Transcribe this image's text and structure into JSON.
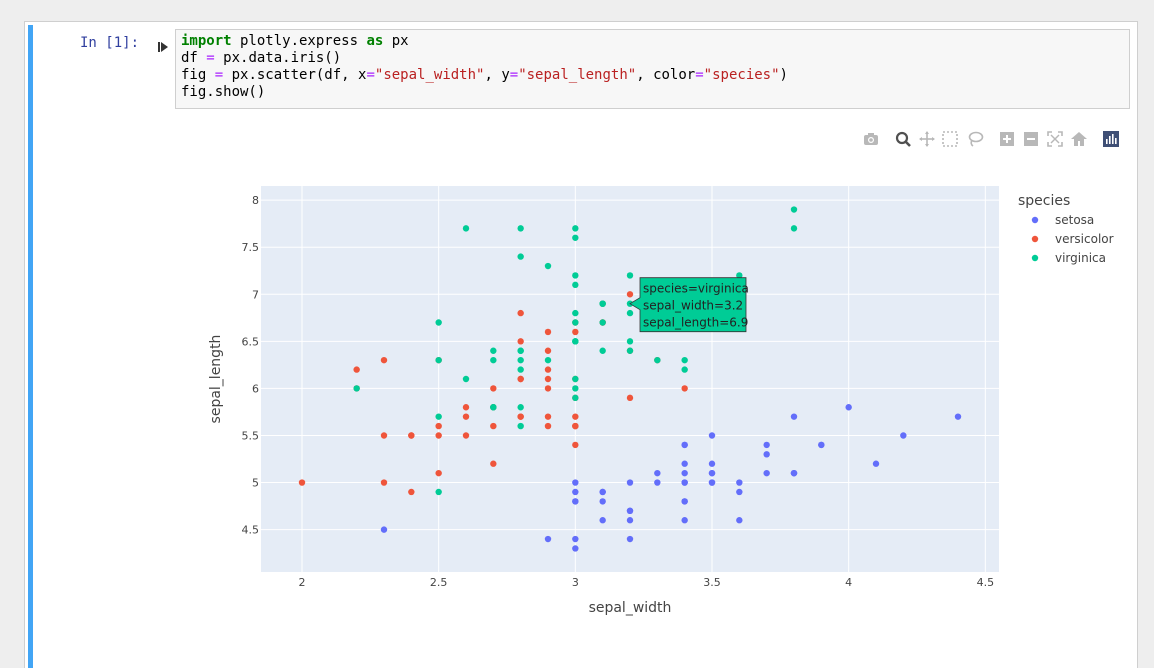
{
  "cell": {
    "prompt": "In [1]:",
    "code_lines": [
      [
        {
          "t": "import",
          "c": "kw"
        },
        {
          "t": " plotly.express ",
          "c": ""
        },
        {
          "t": "as",
          "c": "kw"
        },
        {
          "t": " px",
          "c": ""
        }
      ],
      [
        {
          "t": "df ",
          "c": ""
        },
        {
          "t": "=",
          "c": "op"
        },
        {
          "t": " px.data.iris()",
          "c": ""
        }
      ],
      [
        {
          "t": "fig ",
          "c": ""
        },
        {
          "t": "=",
          "c": "op"
        },
        {
          "t": " px.scatter(df, x",
          "c": ""
        },
        {
          "t": "=",
          "c": "op"
        },
        {
          "t": "\"sepal_width\"",
          "c": "str"
        },
        {
          "t": ", y",
          "c": ""
        },
        {
          "t": "=",
          "c": "op"
        },
        {
          "t": "\"sepal_length\"",
          "c": "str"
        },
        {
          "t": ", color",
          "c": ""
        },
        {
          "t": "=",
          "c": "op"
        },
        {
          "t": "\"species\"",
          "c": "str"
        },
        {
          "t": ")",
          "c": ""
        }
      ],
      [
        {
          "t": "fig.show()",
          "c": ""
        }
      ]
    ]
  },
  "modebar": {
    "buttons": [
      "camera-icon",
      "zoom-icon",
      "pan-icon",
      "box-select-icon",
      "lasso-icon",
      "zoom-in-icon",
      "zoom-out-icon",
      "autoscale-icon",
      "reset-axes-icon",
      "plotly-logo-icon"
    ]
  },
  "chart_data": {
    "type": "scatter",
    "xlabel": "sepal_width",
    "ylabel": "sepal_length",
    "xlim": [
      1.85,
      4.55
    ],
    "ylim": [
      4.05,
      8.15
    ],
    "xticks": [
      "2",
      "2.5",
      "3",
      "3.5",
      "4",
      "4.5"
    ],
    "yticks": [
      "4.5",
      "5",
      "5.5",
      "6",
      "6.5",
      "7",
      "7.5",
      "8"
    ],
    "grid": true,
    "legend_title": "species",
    "legend_position": "top-right",
    "series": [
      {
        "name": "setosa",
        "color": "#636efa",
        "points": [
          [
            3.5,
            5.1
          ],
          [
            3.0,
            4.9
          ],
          [
            3.2,
            4.7
          ],
          [
            3.1,
            4.6
          ],
          [
            3.6,
            5.0
          ],
          [
            3.9,
            5.4
          ],
          [
            3.4,
            4.6
          ],
          [
            3.4,
            5.0
          ],
          [
            2.9,
            4.4
          ],
          [
            3.1,
            4.9
          ],
          [
            3.7,
            5.4
          ],
          [
            3.4,
            4.8
          ],
          [
            3.0,
            4.8
          ],
          [
            3.0,
            4.3
          ],
          [
            4.0,
            5.8
          ],
          [
            4.4,
            5.7
          ],
          [
            3.9,
            5.4
          ],
          [
            3.5,
            5.1
          ],
          [
            3.8,
            5.7
          ],
          [
            3.8,
            5.1
          ],
          [
            3.4,
            5.4
          ],
          [
            3.7,
            5.1
          ],
          [
            3.6,
            4.6
          ],
          [
            3.3,
            5.1
          ],
          [
            3.4,
            4.8
          ],
          [
            3.0,
            5.0
          ],
          [
            3.4,
            5.0
          ],
          [
            3.5,
            5.2
          ],
          [
            3.4,
            5.2
          ],
          [
            3.2,
            4.7
          ],
          [
            3.1,
            4.8
          ],
          [
            3.4,
            5.4
          ],
          [
            4.1,
            5.2
          ],
          [
            4.2,
            5.5
          ],
          [
            3.1,
            4.9
          ],
          [
            3.2,
            5.0
          ],
          [
            3.5,
            5.5
          ],
          [
            3.6,
            4.9
          ],
          [
            3.0,
            4.4
          ],
          [
            3.4,
            5.1
          ],
          [
            3.5,
            5.0
          ],
          [
            2.3,
            4.5
          ],
          [
            3.2,
            4.4
          ],
          [
            3.5,
            5.0
          ],
          [
            3.8,
            5.1
          ],
          [
            3.0,
            4.8
          ],
          [
            3.8,
            5.1
          ],
          [
            3.2,
            4.6
          ],
          [
            3.7,
            5.3
          ],
          [
            3.3,
            5.0
          ]
        ]
      },
      {
        "name": "versicolor",
        "color": "#ef553b",
        "points": [
          [
            3.2,
            7.0
          ],
          [
            3.2,
            6.4
          ],
          [
            3.1,
            6.9
          ],
          [
            2.3,
            5.5
          ],
          [
            2.8,
            6.5
          ],
          [
            2.8,
            5.7
          ],
          [
            3.3,
            6.3
          ],
          [
            2.4,
            4.9
          ],
          [
            2.9,
            6.6
          ],
          [
            2.7,
            5.2
          ],
          [
            2.0,
            5.0
          ],
          [
            3.0,
            5.9
          ],
          [
            2.2,
            6.0
          ],
          [
            2.9,
            6.1
          ],
          [
            2.9,
            5.6
          ],
          [
            3.1,
            6.7
          ],
          [
            3.0,
            5.6
          ],
          [
            2.7,
            5.8
          ],
          [
            2.2,
            6.2
          ],
          [
            2.5,
            5.6
          ],
          [
            3.2,
            5.9
          ],
          [
            2.8,
            6.1
          ],
          [
            2.5,
            6.3
          ],
          [
            2.8,
            6.1
          ],
          [
            2.9,
            6.4
          ],
          [
            3.0,
            6.6
          ],
          [
            2.8,
            6.8
          ],
          [
            3.0,
            6.7
          ],
          [
            2.9,
            6.0
          ],
          [
            2.6,
            5.7
          ],
          [
            2.4,
            5.5
          ],
          [
            2.4,
            5.5
          ],
          [
            2.7,
            5.8
          ],
          [
            2.7,
            6.0
          ],
          [
            3.0,
            5.4
          ],
          [
            3.4,
            6.0
          ],
          [
            3.1,
            6.7
          ],
          [
            2.3,
            6.3
          ],
          [
            3.0,
            5.6
          ],
          [
            2.5,
            5.5
          ],
          [
            2.6,
            5.5
          ],
          [
            3.0,
            6.1
          ],
          [
            2.6,
            5.8
          ],
          [
            2.3,
            5.0
          ],
          [
            2.7,
            5.6
          ],
          [
            3.0,
            5.7
          ],
          [
            2.9,
            5.7
          ],
          [
            2.9,
            6.2
          ],
          [
            2.5,
            5.1
          ],
          [
            2.8,
            5.7
          ]
        ]
      },
      {
        "name": "virginica",
        "color": "#00cc96",
        "points": [
          [
            3.3,
            6.3
          ],
          [
            2.7,
            5.8
          ],
          [
            3.0,
            7.1
          ],
          [
            2.9,
            6.3
          ],
          [
            3.0,
            6.5
          ],
          [
            3.0,
            7.6
          ],
          [
            2.5,
            4.9
          ],
          [
            2.9,
            7.3
          ],
          [
            2.5,
            6.7
          ],
          [
            3.6,
            7.2
          ],
          [
            3.2,
            6.5
          ],
          [
            2.7,
            6.4
          ],
          [
            3.0,
            6.8
          ],
          [
            2.5,
            5.7
          ],
          [
            2.8,
            5.8
          ],
          [
            3.2,
            6.4
          ],
          [
            3.0,
            6.5
          ],
          [
            3.8,
            7.7
          ],
          [
            2.6,
            7.7
          ],
          [
            2.2,
            6.0
          ],
          [
            3.2,
            6.9
          ],
          [
            2.8,
            5.6
          ],
          [
            2.8,
            7.7
          ],
          [
            2.7,
            6.3
          ],
          [
            3.3,
            6.7
          ],
          [
            3.2,
            7.2
          ],
          [
            2.8,
            6.2
          ],
          [
            3.0,
            6.1
          ],
          [
            2.8,
            6.4
          ],
          [
            3.0,
            7.2
          ],
          [
            2.8,
            7.4
          ],
          [
            3.8,
            7.9
          ],
          [
            2.8,
            6.4
          ],
          [
            2.8,
            6.3
          ],
          [
            2.6,
            6.1
          ],
          [
            3.0,
            7.7
          ],
          [
            3.4,
            6.3
          ],
          [
            3.1,
            6.4
          ],
          [
            3.0,
            6.0
          ],
          [
            3.1,
            6.9
          ],
          [
            3.1,
            6.7
          ],
          [
            3.1,
            6.9
          ],
          [
            2.7,
            5.8
          ],
          [
            3.2,
            6.8
          ],
          [
            3.3,
            6.7
          ],
          [
            3.0,
            6.7
          ],
          [
            2.5,
            6.3
          ],
          [
            3.0,
            6.5
          ],
          [
            3.4,
            6.2
          ],
          [
            3.0,
            5.9
          ]
        ]
      }
    ],
    "hover": {
      "series": "virginica",
      "point": [
        3.2,
        6.9
      ],
      "lines": [
        "species=virginica",
        "sepal_width=3.2",
        "sepal_length=6.9"
      ]
    }
  }
}
